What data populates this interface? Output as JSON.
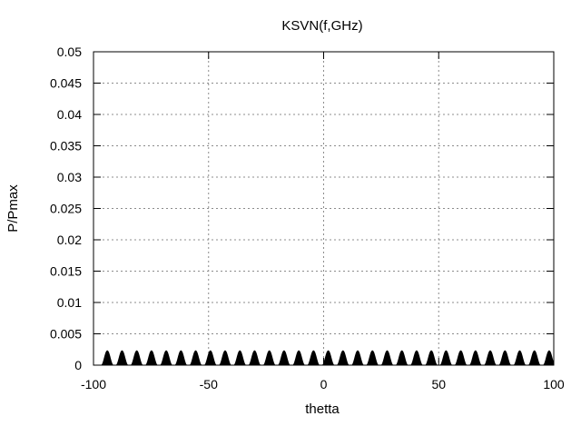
{
  "chart_data": {
    "type": "line",
    "title": "KSVN(f,GHz)",
    "xlabel": "thetta",
    "ylabel": "P/Pmax",
    "xlim": [
      -100,
      100
    ],
    "ylim": [
      0,
      0.05
    ],
    "x_ticks": [
      -100,
      -50,
      0,
      50,
      100
    ],
    "x_tick_labels": [
      "-100",
      "-50",
      "0",
      "50",
      "100"
    ],
    "y_ticks": [
      0,
      0.005,
      0.01,
      0.015,
      0.02,
      0.025,
      0.03,
      0.035,
      0.04,
      0.045,
      0.05
    ],
    "y_tick_labels": [
      "0",
      "0.005",
      "0.01",
      "0.015",
      "0.02",
      "0.025",
      "0.03",
      "0.035",
      "0.04",
      "0.045",
      "0.05"
    ],
    "grid": true,
    "series": [
      {
        "color": "#000000",
        "lobe_peak_x": [
          -94,
          -87.6,
          -81.2,
          -74.8,
          -68.4,
          -62,
          -55.6,
          -49.2,
          -42.8,
          -36.4,
          -30,
          -23.6,
          -17.2,
          -10.8,
          -4.4,
          2,
          8.4,
          14.8,
          21.2,
          27.6,
          34,
          40.4,
          46.8,
          53.2,
          59.6,
          66,
          72.4,
          78.8,
          85.2,
          91.6,
          98
        ],
        "lobe_peak_y": 0.0023,
        "lobe_half_width": 2.6
      }
    ]
  }
}
